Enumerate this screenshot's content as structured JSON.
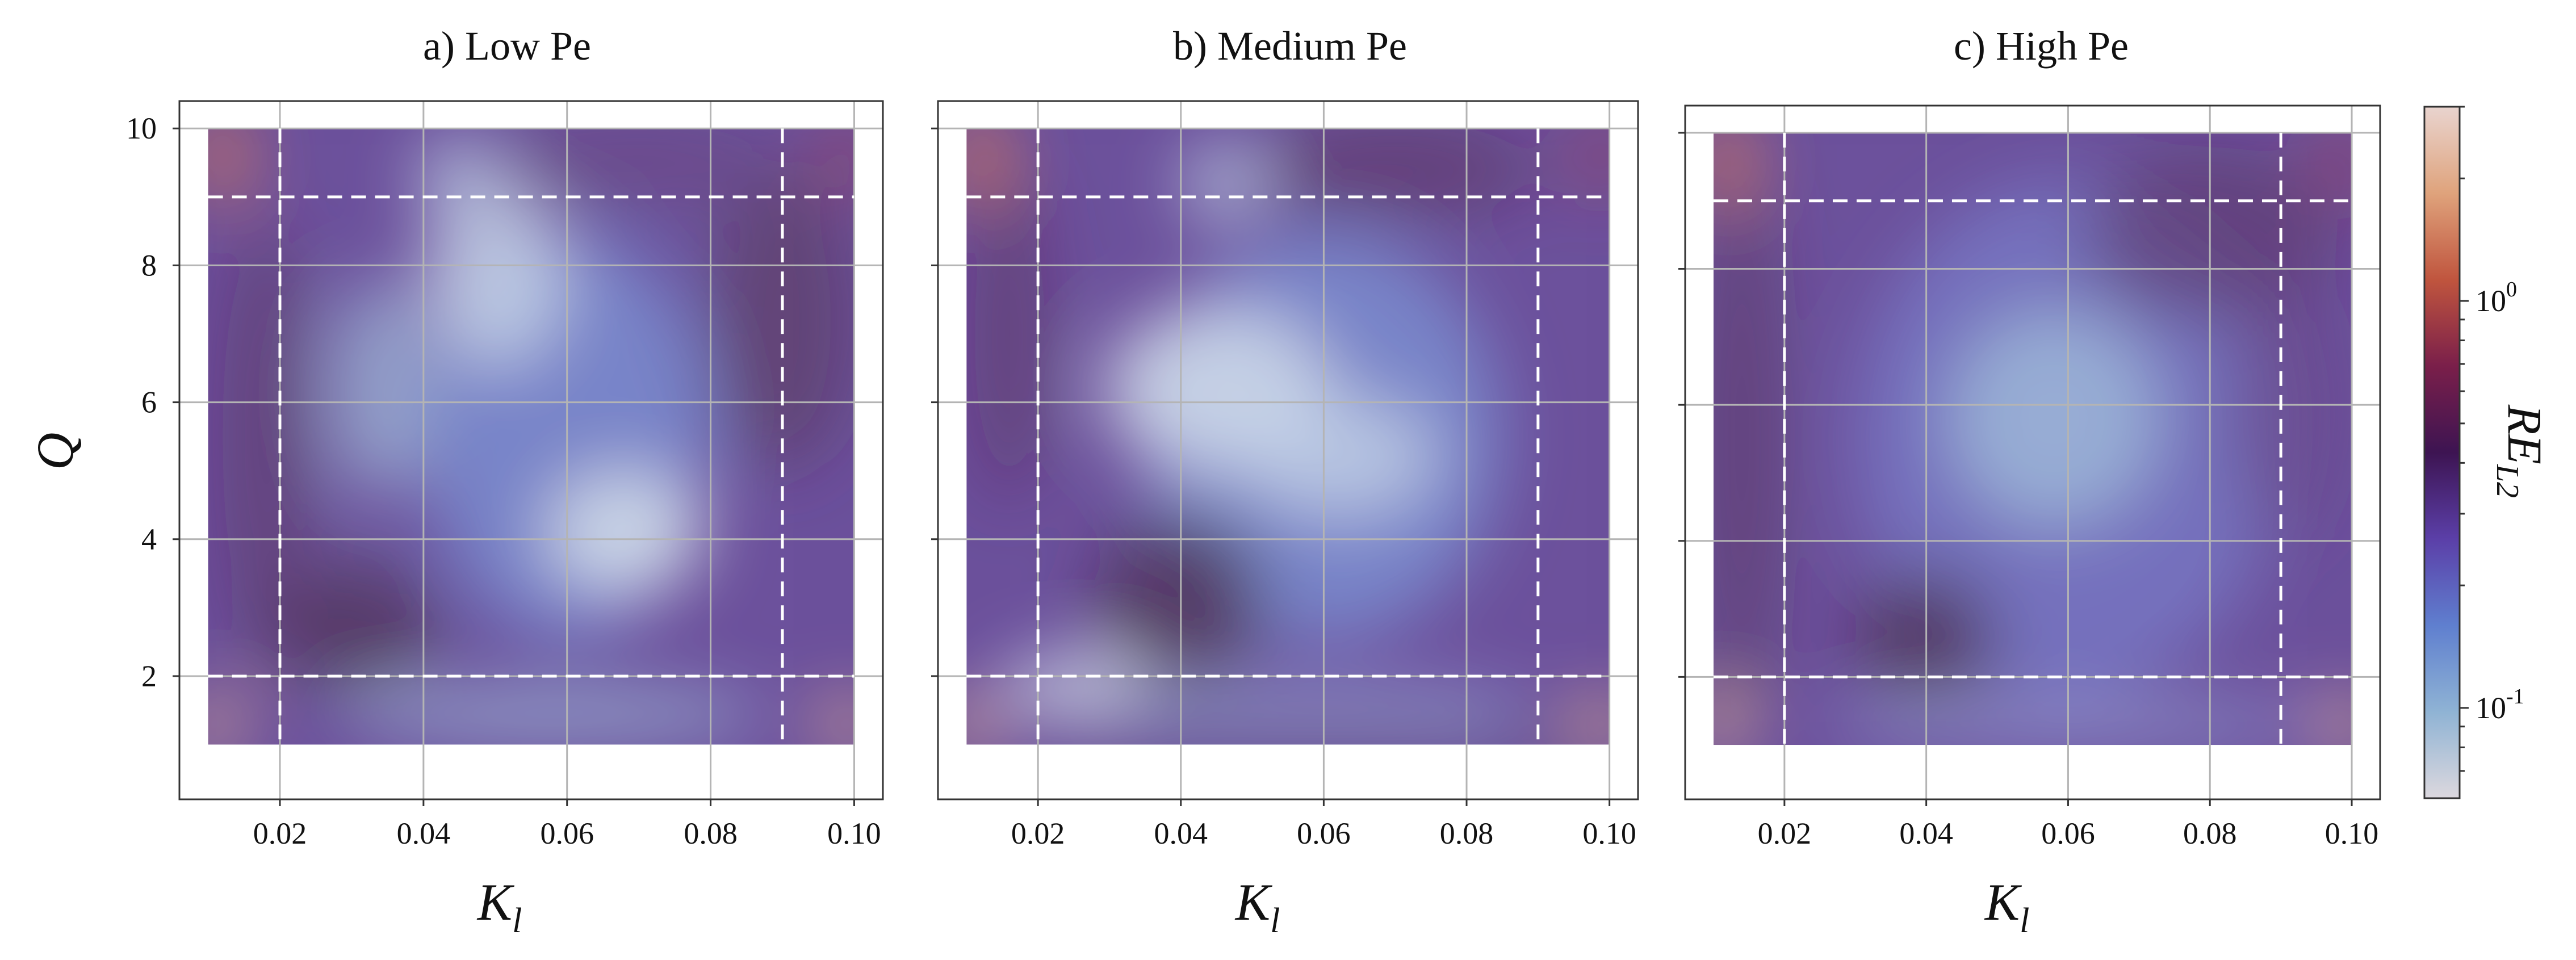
{
  "chart_data": {
    "type": "scatter",
    "description_free": true,
    "xlabel": "K",
    "xlabel_sub": "l",
    "ylabel": "Q",
    "xlim": [
      0.006,
      0.104
    ],
    "ylim": [
      0.2,
      10.4
    ],
    "xticks": [
      "0.02",
      "0.04",
      "0.06",
      "0.08",
      "0.10"
    ],
    "xtick_values": [
      0.02,
      0.04,
      0.06,
      0.08,
      0.1
    ],
    "yticks": [
      "2",
      "4",
      "6",
      "8",
      "10"
    ],
    "ytick_values": [
      2,
      4,
      6,
      8,
      10
    ],
    "sample_domain": {
      "x": [
        0.01,
        0.1
      ],
      "y": [
        1,
        10
      ]
    },
    "reference_lines": {
      "x": [
        0.02,
        0.09
      ],
      "y": [
        2,
        9
      ]
    },
    "panels": [
      {
        "title": "a) Low Pe",
        "show_ytick_labels": true
      },
      {
        "title": "b) Medium Pe",
        "show_ytick_labels": false
      },
      {
        "title": "c) High Pe",
        "show_ytick_labels": false
      }
    ],
    "colorbar": {
      "label": "RE",
      "label_sub": "L2",
      "scale": "log",
      "range": [
        0.06,
        3.0
      ],
      "ticks": [
        {
          "base": "10",
          "exp": "0",
          "value": 1.0
        },
        {
          "base": "10",
          "exp": "-1",
          "value": 0.1
        }
      ],
      "colors": [
        "#dcd8de",
        "#8fb3d4",
        "#5f7fcf",
        "#5b3fa8",
        "#3d1452",
        "#7a1f4a",
        "#c0553e",
        "#dfa37c",
        "#e9d4cf"
      ]
    }
  }
}
